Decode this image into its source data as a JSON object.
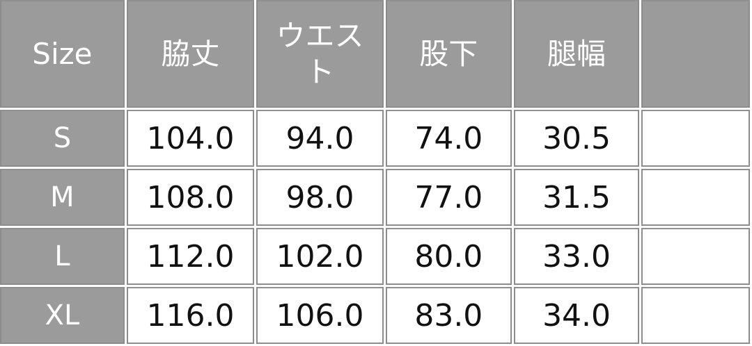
{
  "headers": [
    "Size",
    "脇丈",
    "ウエスト",
    "股下",
    "腿幅",
    ""
  ],
  "rows": [
    {
      "size": "S",
      "values": [
        "104.0",
        "94.0",
        "74.0",
        "30.5",
        ""
      ]
    },
    {
      "size": "M",
      "values": [
        "108.0",
        "98.0",
        "77.0",
        "31.5",
        ""
      ]
    },
    {
      "size": "L",
      "values": [
        "112.0",
        "102.0",
        "80.0",
        "33.0",
        ""
      ]
    },
    {
      "size": "XL",
      "values": [
        "116.0",
        "106.0",
        "83.0",
        "34.0",
        ""
      ]
    }
  ],
  "colors": {
    "header_bg": "#9b9b9b",
    "header_text": "#ffffff",
    "cell_bg": "#ffffff",
    "border": "#8c8c8c"
  }
}
